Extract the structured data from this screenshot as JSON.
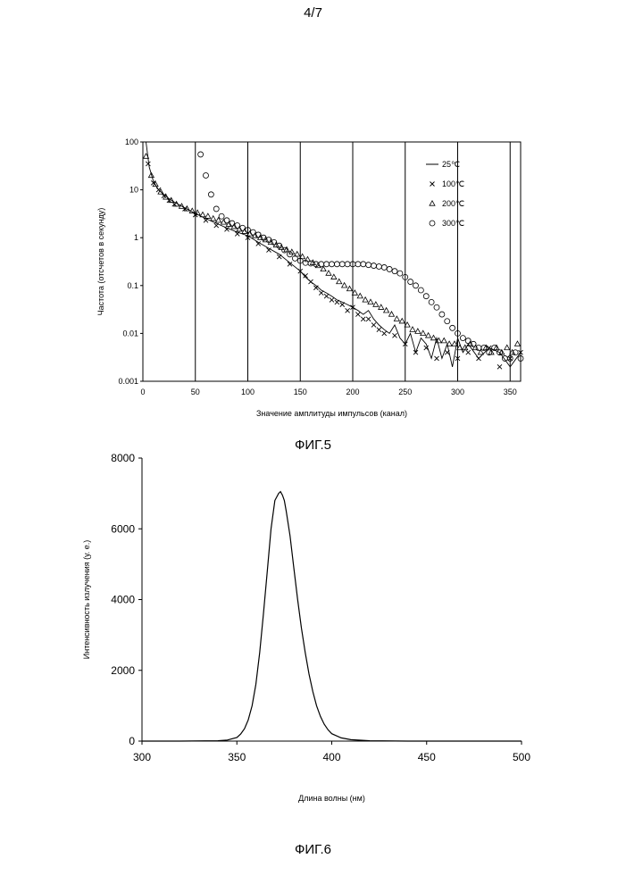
{
  "page_number": "4/7",
  "figures": [
    {
      "caption": "ФИГ.5"
    },
    {
      "caption": "ФИГ.6"
    }
  ],
  "chart_data": [
    {
      "type": "scatter",
      "title": "",
      "xlabel": "Значение амплитуды импульсов (канал)",
      "ylabel": "Частота (отсчетов в секунду)",
      "xlim": [
        0,
        360
      ],
      "ylim": [
        0.001,
        100
      ],
      "y_scale": "log",
      "x_ticks": [
        0,
        50,
        100,
        150,
        200,
        250,
        300,
        350
      ],
      "x_tick_labels": [
        "0",
        "50",
        "100",
        "150",
        "200",
        "250",
        "300",
        "350"
      ],
      "y_ticks": [
        0.001,
        0.01,
        0.1,
        1,
        10,
        100
      ],
      "y_tick_labels": [
        "0.001",
        "0.01",
        "0.1",
        "1",
        "10",
        "100"
      ],
      "vertical_grid": true,
      "legend_position": "top-right",
      "series": [
        {
          "name": "25℃",
          "marker": "line",
          "x": [
            3,
            6,
            10,
            15,
            20,
            25,
            30,
            40,
            50,
            60,
            70,
            80,
            90,
            100,
            110,
            120,
            130,
            140,
            150,
            155,
            160,
            165,
            170,
            175,
            180,
            185,
            190,
            195,
            200,
            205,
            210,
            215,
            220,
            225,
            230,
            235,
            240,
            245,
            250,
            255,
            260,
            265,
            270,
            275,
            280,
            285,
            290,
            295,
            300,
            305,
            310,
            320,
            330,
            340,
            350,
            360
          ],
          "y": [
            100,
            30,
            15,
            10,
            8,
            6.5,
            5.5,
            4.2,
            3.2,
            2.5,
            2,
            1.6,
            1.3,
            1.1,
            0.8,
            0.6,
            0.45,
            0.3,
            0.2,
            0.15,
            0.12,
            0.1,
            0.08,
            0.07,
            0.06,
            0.05,
            0.045,
            0.04,
            0.035,
            0.03,
            0.025,
            0.03,
            0.02,
            0.015,
            0.012,
            0.01,
            0.015,
            0.008,
            0.006,
            0.01,
            0.004,
            0.008,
            0.006,
            0.003,
            0.008,
            0.003,
            0.006,
            0.002,
            0.008,
            0.004,
            0.006,
            0.003,
            0.005,
            0.004,
            0.002,
            0.004
          ]
        },
        {
          "name": "100℃",
          "marker": "x",
          "x": [
            5,
            10,
            15,
            20,
            25,
            30,
            40,
            50,
            60,
            70,
            80,
            90,
            100,
            110,
            120,
            130,
            140,
            150,
            155,
            160,
            165,
            170,
            175,
            180,
            185,
            190,
            195,
            200,
            205,
            210,
            215,
            220,
            225,
            230,
            240,
            250,
            260,
            270,
            280,
            290,
            300,
            310,
            320,
            330,
            340,
            350,
            360
          ],
          "y": [
            35,
            14,
            10,
            7.5,
            6,
            5,
            4,
            3,
            2.3,
            1.8,
            1.5,
            1.2,
            1,
            0.75,
            0.55,
            0.4,
            0.28,
            0.2,
            0.16,
            0.12,
            0.09,
            0.07,
            0.06,
            0.05,
            0.045,
            0.04,
            0.03,
            0.035,
            0.025,
            0.02,
            0.02,
            0.015,
            0.012,
            0.01,
            0.009,
            0.006,
            0.004,
            0.005,
            0.003,
            0.004,
            0.003,
            0.004,
            0.003,
            0.005,
            0.002,
            0.003,
            0.004
          ]
        },
        {
          "name": "200℃",
          "marker": "triangle",
          "x": [
            3,
            8,
            12,
            17,
            22,
            27,
            32,
            37,
            42,
            47,
            52,
            57,
            62,
            67,
            72,
            77,
            82,
            87,
            92,
            97,
            102,
            107,
            112,
            117,
            122,
            127,
            132,
            137,
            142,
            147,
            152,
            157,
            162,
            167,
            172,
            177,
            182,
            187,
            192,
            197,
            202,
            207,
            212,
            217,
            222,
            227,
            232,
            237,
            242,
            247,
            252,
            257,
            262,
            267,
            272,
            277,
            282,
            287,
            292,
            297,
            302,
            307,
            312,
            317,
            322,
            327,
            332,
            337,
            342,
            347,
            352,
            357
          ],
          "y": [
            50,
            20,
            13,
            9,
            7,
            6,
            5,
            4.5,
            4,
            3.6,
            3.3,
            3,
            2.8,
            2.5,
            2.3,
            2.1,
            1.9,
            1.7,
            1.5,
            1.35,
            1.2,
            1.1,
            1,
            0.9,
            0.8,
            0.7,
            0.62,
            0.56,
            0.5,
            0.45,
            0.4,
            0.35,
            0.3,
            0.26,
            0.22,
            0.18,
            0.15,
            0.12,
            0.1,
            0.085,
            0.07,
            0.06,
            0.05,
            0.045,
            0.04,
            0.035,
            0.03,
            0.025,
            0.02,
            0.018,
            0.015,
            0.012,
            0.011,
            0.01,
            0.009,
            0.008,
            0.007,
            0.007,
            0.006,
            0.006,
            0.005,
            0.005,
            0.006,
            0.005,
            0.004,
            0.005,
            0.004,
            0.005,
            0.004,
            0.005,
            0.004,
            0.006
          ]
        },
        {
          "name": "300℃",
          "marker": "circle",
          "x": [
            55,
            60,
            65,
            70,
            75,
            80,
            85,
            90,
            95,
            100,
            105,
            110,
            115,
            120,
            125,
            130,
            135,
            140,
            145,
            150,
            155,
            160,
            165,
            170,
            175,
            180,
            185,
            190,
            195,
            200,
            205,
            210,
            215,
            220,
            225,
            230,
            235,
            240,
            245,
            250,
            255,
            260,
            265,
            270,
            275,
            280,
            285,
            290,
            295,
            300,
            305,
            310,
            315,
            320,
            325,
            330,
            335,
            340,
            345,
            350,
            355,
            360
          ],
          "y": [
            55,
            20,
            8,
            4,
            2.8,
            2.3,
            2,
            1.8,
            1.6,
            1.45,
            1.3,
            1.15,
            1,
            0.9,
            0.8,
            0.68,
            0.55,
            0.45,
            0.37,
            0.33,
            0.3,
            0.29,
            0.28,
            0.28,
            0.28,
            0.28,
            0.28,
            0.28,
            0.28,
            0.28,
            0.28,
            0.28,
            0.27,
            0.26,
            0.25,
            0.24,
            0.22,
            0.2,
            0.18,
            0.15,
            0.12,
            0.1,
            0.08,
            0.06,
            0.045,
            0.035,
            0.025,
            0.018,
            0.013,
            0.01,
            0.008,
            0.007,
            0.006,
            0.005,
            0.005,
            0.004,
            0.005,
            0.004,
            0.003,
            0.003,
            0.004,
            0.003
          ]
        }
      ]
    },
    {
      "type": "line",
      "title": "",
      "xlabel": "Длина волны (нм)",
      "ylabel": "Интенсивность излучения (у. е.)",
      "xlim": [
        300,
        500
      ],
      "ylim": [
        0,
        8000
      ],
      "x_ticks": [
        300,
        350,
        400,
        450,
        500
      ],
      "x_tick_labels": [
        "300",
        "350",
        "400",
        "450",
        "500"
      ],
      "y_ticks": [
        0,
        2000,
        4000,
        6000,
        8000
      ],
      "y_tick_labels": [
        "0",
        "2000",
        "4000",
        "6000",
        "8000"
      ],
      "grid": false,
      "series": [
        {
          "x": [
            300,
            320,
            340,
            345,
            350,
            352,
            354,
            356,
            358,
            360,
            362,
            364,
            366,
            368,
            370,
            372,
            373,
            374,
            375,
            376,
            378,
            380,
            382,
            384,
            386,
            388,
            390,
            392,
            394,
            396,
            398,
            400,
            405,
            410,
            420,
            440,
            460,
            500
          ],
          "y": [
            0,
            0,
            10,
            30,
            100,
            200,
            350,
            600,
            1000,
            1600,
            2500,
            3600,
            4800,
            6000,
            6800,
            7000,
            7050,
            6950,
            6800,
            6500,
            5800,
            4900,
            4000,
            3200,
            2500,
            1900,
            1400,
            1000,
            700,
            480,
            320,
            210,
            90,
            40,
            10,
            0,
            0,
            0
          ]
        }
      ]
    }
  ]
}
